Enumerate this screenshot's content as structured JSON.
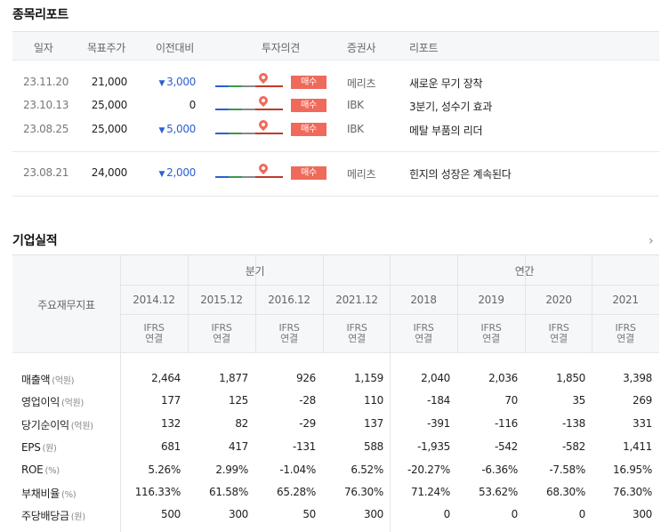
{
  "report": {
    "title": "종목리포트",
    "headers": [
      "일자",
      "목표주가",
      "이전대비",
      "투자의견",
      "증권사",
      "리포트"
    ],
    "rows": [
      {
        "date": "23.11.20",
        "target": "21,000",
        "diff": "3,000",
        "direction": "down",
        "opinion": "매수",
        "firm": "메리츠",
        "title": "새로운 무기 장착"
      },
      {
        "date": "23.10.13",
        "target": "25,000",
        "diff": "0",
        "direction": "none",
        "opinion": "매수",
        "firm": "IBK",
        "title": "3분기, 성수기 효과"
      },
      {
        "date": "23.08.25",
        "target": "25,000",
        "diff": "5,000",
        "direction": "down",
        "opinion": "매수",
        "firm": "IBK",
        "title": "메탈 부품의 리더"
      },
      {
        "date": "23.08.21",
        "target": "24,000",
        "diff": "2,000",
        "direction": "down",
        "opinion": "매수",
        "firm": "메리츠",
        "title": "힌지의 성장은 계속된다"
      }
    ]
  },
  "financials": {
    "title": "기업실적",
    "more_icon": "chevron-right-icon",
    "row_header": "주요재무지표",
    "quarter_label": "분기",
    "annual_label": "연간",
    "periods": [
      "2014.12",
      "2015.12",
      "2016.12",
      "2021.12",
      "2018",
      "2019",
      "2020",
      "2021"
    ],
    "basis_top": "IFRS",
    "basis_bottom": "연결",
    "rows": [
      {
        "label": "매출액",
        "unit": "(억원)",
        "values": [
          "2,464",
          "1,877",
          "926",
          "1,159",
          "2,040",
          "2,036",
          "1,850",
          "3,398"
        ]
      },
      {
        "label": "영업이익",
        "unit": "(억원)",
        "values": [
          "177",
          "125",
          "-28",
          "110",
          "-184",
          "70",
          "35",
          "269"
        ]
      },
      {
        "label": "당기순이익",
        "unit": "(억원)",
        "values": [
          "132",
          "82",
          "-29",
          "137",
          "-391",
          "-116",
          "-138",
          "331"
        ]
      },
      {
        "label": "EPS",
        "unit": "(원)",
        "values": [
          "681",
          "417",
          "-131",
          "588",
          "-1,935",
          "-542",
          "-582",
          "1,411"
        ]
      },
      {
        "label": "ROE",
        "unit": "(%)",
        "values": [
          "5.26%",
          "2.99%",
          "-1.04%",
          "6.52%",
          "-20.27%",
          "-6.36%",
          "-7.58%",
          "16.95%"
        ]
      },
      {
        "label": "부채비율",
        "unit": "(%)",
        "values": [
          "116.33%",
          "61.58%",
          "65.28%",
          "76.30%",
          "71.24%",
          "53.62%",
          "68.30%",
          "76.30%"
        ]
      },
      {
        "label": "주당배당금",
        "unit": "(원)",
        "values": [
          "500",
          "300",
          "50",
          "300",
          "0",
          "0",
          "0",
          "300"
        ]
      }
    ]
  },
  "colors": {
    "buy": "#ef6a5a",
    "down": "#2b5fd4"
  }
}
